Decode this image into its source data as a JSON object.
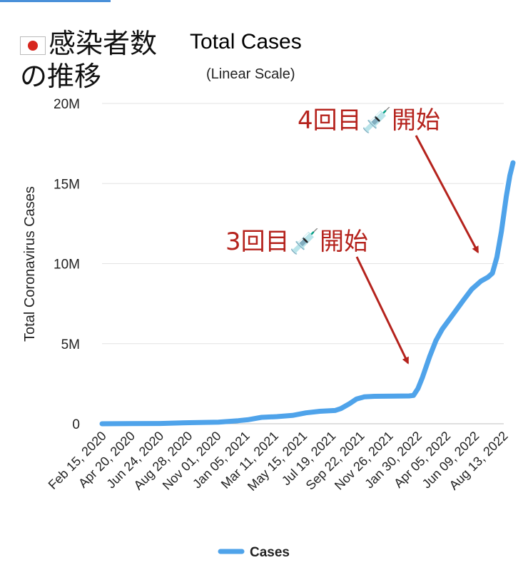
{
  "header": {
    "jp_title_line1": "感染者数",
    "jp_title_line2": "の推移"
  },
  "chart_data": {
    "type": "line",
    "title": "Total Cases",
    "subtitle": "(Linear Scale)",
    "xlabel": "",
    "ylabel": "Total Coronavirus Cases",
    "ylim": [
      0,
      20000000
    ],
    "y_ticks": [
      {
        "value": 0,
        "label": "0"
      },
      {
        "value": 5000000,
        "label": "5M"
      },
      {
        "value": 10000000,
        "label": "10M"
      },
      {
        "value": 15000000,
        "label": "15M"
      },
      {
        "value": 20000000,
        "label": "20M"
      }
    ],
    "x_tick_labels": [
      "Feb 15, 2020",
      "Apr 20, 2020",
      "Jun 24, 2020",
      "Aug 28, 2020",
      "Nov 01, 2020",
      "Jan 05, 2021",
      "Mar 11, 2021",
      "May 15, 2021",
      "Jul 19, 2021",
      "Sep 22, 2021",
      "Nov 26, 2021",
      "Jan 30, 2022",
      "Apr 05, 2022",
      "Jun 09, 2022",
      "Aug 13, 2022"
    ],
    "grid": true,
    "legend_position": "bottom",
    "series": [
      {
        "name": "Cases",
        "color": "#4fa3ea",
        "points": [
          {
            "x": "2020-02-15",
            "y": 50
          },
          {
            "x": "2020-04-20",
            "y": 11000
          },
          {
            "x": "2020-06-24",
            "y": 18000
          },
          {
            "x": "2020-08-28",
            "y": 65000
          },
          {
            "x": "2020-11-01",
            "y": 100000
          },
          {
            "x": "2020-12-15",
            "y": 190000
          },
          {
            "x": "2021-01-05",
            "y": 250000
          },
          {
            "x": "2021-02-05",
            "y": 400000
          },
          {
            "x": "2021-03-11",
            "y": 445000
          },
          {
            "x": "2021-04-15",
            "y": 520000
          },
          {
            "x": "2021-05-15",
            "y": 680000
          },
          {
            "x": "2021-06-15",
            "y": 780000
          },
          {
            "x": "2021-07-19",
            "y": 830000
          },
          {
            "x": "2021-08-01",
            "y": 950000
          },
          {
            "x": "2021-08-20",
            "y": 1250000
          },
          {
            "x": "2021-09-05",
            "y": 1550000
          },
          {
            "x": "2021-09-22",
            "y": 1680000
          },
          {
            "x": "2021-10-15",
            "y": 1715000
          },
          {
            "x": "2021-11-26",
            "y": 1725000
          },
          {
            "x": "2021-12-31",
            "y": 1735000
          },
          {
            "x": "2022-01-10",
            "y": 1770000
          },
          {
            "x": "2022-01-20",
            "y": 2200000
          },
          {
            "x": "2022-01-30",
            "y": 2900000
          },
          {
            "x": "2022-02-15",
            "y": 4200000
          },
          {
            "x": "2022-03-01",
            "y": 5200000
          },
          {
            "x": "2022-03-15",
            "y": 5900000
          },
          {
            "x": "2022-04-05",
            "y": 6700000
          },
          {
            "x": "2022-05-01",
            "y": 7700000
          },
          {
            "x": "2022-05-20",
            "y": 8400000
          },
          {
            "x": "2022-06-09",
            "y": 8900000
          },
          {
            "x": "2022-06-25",
            "y": 9150000
          },
          {
            "x": "2022-07-05",
            "y": 9400000
          },
          {
            "x": "2022-07-15",
            "y": 10400000
          },
          {
            "x": "2022-07-25",
            "y": 12000000
          },
          {
            "x": "2022-08-05",
            "y": 14200000
          },
          {
            "x": "2022-08-13",
            "y": 15500000
          },
          {
            "x": "2022-08-20",
            "y": 16300000
          }
        ]
      }
    ],
    "annotations": [
      {
        "text": "3回目💉開始",
        "target_date": "2022-01-20",
        "target_value": 2900000
      },
      {
        "text": "4回目💉開始",
        "target_date": "2022-06-09",
        "target_value": 10000000
      }
    ]
  }
}
